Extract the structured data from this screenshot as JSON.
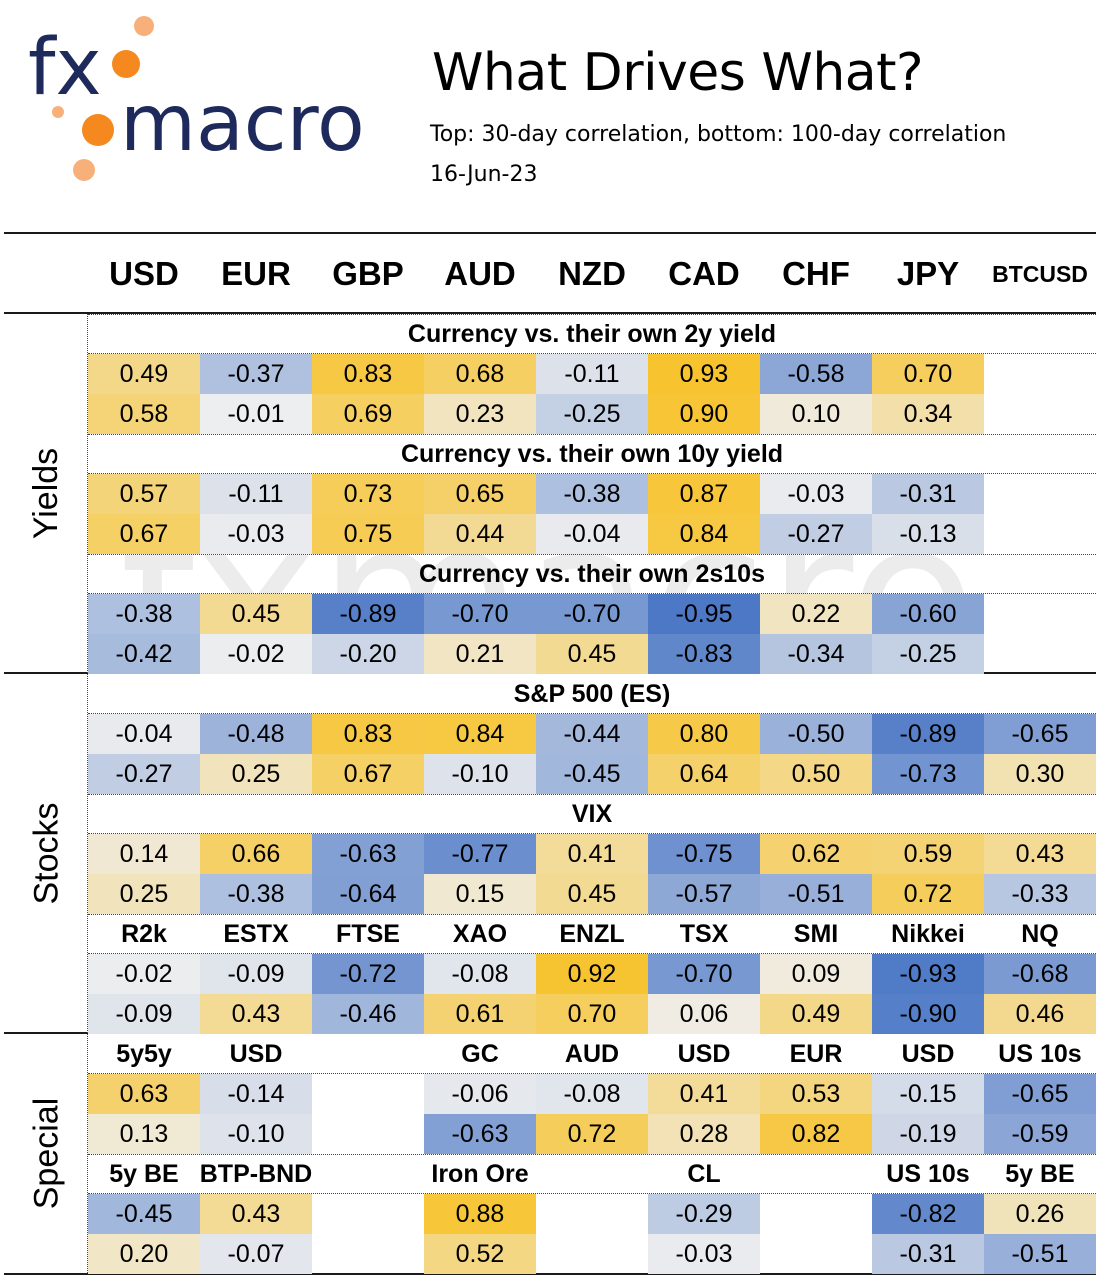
{
  "logo": {
    "text_fx": "fx",
    "text_macro": "macro",
    "dot_color": "#F5891F",
    "text_color": "#1F2A5C"
  },
  "header": {
    "title": "What Drives What?",
    "subtitle": "Top: 30-day correlation, bottom: 100-day correlation",
    "date": "16-Jun-23"
  },
  "columns": [
    "USD",
    "EUR",
    "GBP",
    "AUD",
    "NZD",
    "CAD",
    "CHF",
    "JPY",
    "BTCUSD"
  ],
  "section_labels": {
    "yields": "Yields",
    "stocks": "Stocks",
    "special": "Special"
  },
  "colors": {
    "positive": "#F8C020",
    "negative": "#4472C4",
    "neutral": "#EFEFEF"
  },
  "chart_data": {
    "type": "heatmap",
    "value_range": [
      -1,
      1
    ],
    "blocks": [
      {
        "title": "Currency vs. their own 2y yield",
        "labels": [],
        "top": [
          0.49,
          -0.37,
          0.83,
          0.68,
          -0.11,
          0.93,
          -0.58,
          0.7,
          null
        ],
        "bottom": [
          0.58,
          -0.01,
          0.69,
          0.23,
          -0.25,
          0.9,
          0.1,
          0.34,
          null
        ]
      },
      {
        "title": "Currency vs. their own 10y yield",
        "labels": [],
        "top": [
          0.57,
          -0.11,
          0.73,
          0.65,
          -0.38,
          0.87,
          -0.03,
          -0.31,
          null
        ],
        "bottom": [
          0.67,
          -0.03,
          0.75,
          0.44,
          -0.04,
          0.84,
          -0.27,
          -0.13,
          null
        ]
      },
      {
        "title": "Currency vs. their own 2s10s",
        "labels": [],
        "top": [
          -0.38,
          0.45,
          -0.89,
          -0.7,
          -0.7,
          -0.95,
          0.22,
          -0.6,
          null
        ],
        "bottom": [
          -0.42,
          -0.02,
          -0.2,
          0.21,
          0.45,
          -0.83,
          -0.34,
          -0.25,
          null
        ]
      },
      {
        "title": "S&P 500 (ES)",
        "labels": [],
        "top": [
          -0.04,
          -0.48,
          0.83,
          0.84,
          -0.44,
          0.8,
          -0.5,
          -0.89,
          -0.65
        ],
        "bottom": [
          -0.27,
          0.25,
          0.67,
          -0.1,
          -0.45,
          0.64,
          0.5,
          -0.73,
          0.3
        ]
      },
      {
        "title": "VIX",
        "labels": [],
        "top": [
          0.14,
          0.66,
          -0.63,
          -0.77,
          0.41,
          -0.75,
          0.62,
          0.59,
          0.43
        ],
        "bottom": [
          0.25,
          -0.38,
          -0.64,
          0.15,
          0.45,
          -0.57,
          -0.51,
          0.72,
          -0.33
        ]
      },
      {
        "title": "",
        "labels": [
          "R2k",
          "ESTX",
          "FTSE",
          "XAO",
          "ENZL",
          "TSX",
          "SMI",
          "Nikkei",
          "NQ"
        ],
        "top": [
          -0.02,
          -0.09,
          -0.72,
          -0.08,
          0.92,
          -0.7,
          0.09,
          -0.93,
          -0.68
        ],
        "bottom": [
          -0.09,
          0.43,
          -0.46,
          0.61,
          0.7,
          0.06,
          0.49,
          -0.9,
          0.46
        ]
      },
      {
        "title": "",
        "labels": [
          "5y5y",
          "USD",
          "",
          "GC",
          "AUD",
          "USD",
          "EUR",
          "USD",
          "US 10s"
        ],
        "top": [
          0.63,
          -0.14,
          null,
          -0.06,
          -0.08,
          0.41,
          0.53,
          -0.15,
          -0.65
        ],
        "bottom": [
          0.13,
          -0.1,
          null,
          -0.63,
          0.72,
          0.28,
          0.82,
          -0.19,
          -0.59
        ]
      },
      {
        "title": "",
        "labels": [
          "5y BE",
          "BTP-BND",
          "",
          "Iron Ore",
          "",
          "CL",
          "",
          "US 10s",
          "5y BE"
        ],
        "top": [
          -0.45,
          0.43,
          null,
          0.88,
          null,
          -0.29,
          null,
          -0.82,
          0.26
        ],
        "bottom": [
          0.2,
          -0.07,
          null,
          0.52,
          null,
          -0.03,
          null,
          -0.31,
          -0.51
        ]
      }
    ]
  }
}
